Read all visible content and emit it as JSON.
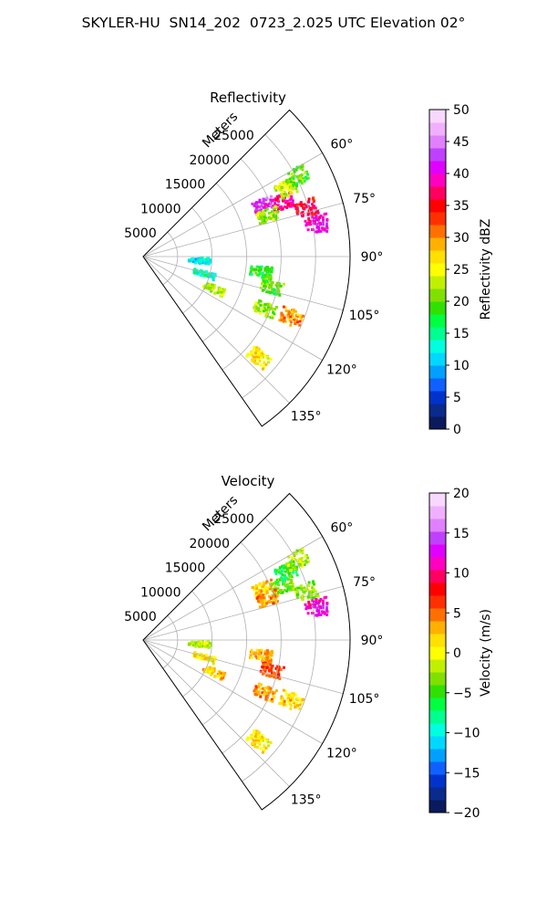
{
  "title": "SKYLER-HU  SN14_202  0723_2.025 UTC Elevation 02°",
  "chart_data": [
    {
      "type": "heatmap",
      "subtype": "polar-sector",
      "title": "Reflectivity",
      "radial_label": "Meters",
      "radial_ticks": [
        5000,
        10000,
        15000,
        20000,
        25000
      ],
      "rlim": [
        0,
        30000
      ],
      "theta_ticks": [
        "60°",
        "75°",
        "90°",
        "105°",
        "120°",
        "135°"
      ],
      "theta_tick_values": [
        60,
        75,
        90,
        105,
        120,
        135
      ],
      "theta_range": [
        45,
        145
      ],
      "grid": true,
      "colorbar": {
        "label": "Reflectivity dBZ",
        "min": 0,
        "max": 50,
        "ticks": [
          "0",
          "5",
          "10",
          "15",
          "20",
          "25",
          "30",
          "35",
          "40",
          "45",
          "50"
        ],
        "colors": [
          "#0a1a5c",
          "#0a2a8c",
          "#0033cc",
          "#1060ff",
          "#00a0ff",
          "#00d8ff",
          "#00ffe0",
          "#00ff90",
          "#00ff40",
          "#30e000",
          "#80e000",
          "#c0f000",
          "#ffff00",
          "#ffe000",
          "#ffb000",
          "#ff7000",
          "#ff3000",
          "#ff0000",
          "#ff0060",
          "#ff00c0",
          "#e000ff",
          "#c040ff",
          "#e080ff",
          "#f0b0ff",
          "#f8d8ff"
        ]
      },
      "echoes": [
        {
          "az": 66,
          "r": 19000,
          "value": 42
        },
        {
          "az": 68,
          "r": 21500,
          "value": 38
        },
        {
          "az": 64,
          "r": 23000,
          "value": 24
        },
        {
          "az": 73,
          "r": 24500,
          "value": 36
        },
        {
          "az": 79,
          "r": 25500,
          "value": 40
        },
        {
          "az": 62,
          "r": 25000,
          "value": 20
        },
        {
          "az": 71,
          "r": 19000,
          "value": 22
        },
        {
          "az": 93,
          "r": 8000,
          "value": 12
        },
        {
          "az": 105,
          "r": 9000,
          "value": 14
        },
        {
          "az": 114,
          "r": 11000,
          "value": 22
        },
        {
          "az": 97,
          "r": 17000,
          "value": 18
        },
        {
          "az": 103,
          "r": 19000,
          "value": 20
        },
        {
          "az": 113,
          "r": 19000,
          "value": 22
        },
        {
          "az": 112,
          "r": 23000,
          "value": 30
        },
        {
          "az": 131,
          "r": 22000,
          "value": 26
        }
      ]
    },
    {
      "type": "heatmap",
      "subtype": "polar-sector",
      "title": "Velocity",
      "radial_label": "Meters",
      "radial_ticks": [
        5000,
        10000,
        15000,
        20000,
        25000
      ],
      "rlim": [
        0,
        30000
      ],
      "theta_ticks": [
        "60°",
        "75°",
        "90°",
        "105°",
        "120°",
        "135°"
      ],
      "theta_tick_values": [
        60,
        75,
        90,
        105,
        120,
        135
      ],
      "theta_range": [
        45,
        145
      ],
      "grid": true,
      "colorbar": {
        "label": "Velocity (m/s)",
        "min": -20,
        "max": 20,
        "ticks": [
          "−20",
          "−15",
          "−10",
          "−5",
          "0",
          "5",
          "10",
          "15",
          "20"
        ],
        "colors": [
          "#0a1a5c",
          "#0a2a8c",
          "#0033cc",
          "#1060ff",
          "#00a0ff",
          "#00d8ff",
          "#00ffe0",
          "#00ff90",
          "#00ff40",
          "#30e000",
          "#80e000",
          "#c0f000",
          "#ffff00",
          "#ffe000",
          "#ffb000",
          "#ff7000",
          "#ff3000",
          "#ff0000",
          "#ff0060",
          "#ff00c0",
          "#e000ff",
          "#c040ff",
          "#e080ff",
          "#f0b0ff",
          "#f8d8ff"
        ]
      },
      "echoes": [
        {
          "az": 66,
          "r": 19000,
          "value": 2
        },
        {
          "az": 68,
          "r": 21500,
          "value": -4
        },
        {
          "az": 64,
          "r": 23000,
          "value": -6
        },
        {
          "az": 73,
          "r": 24500,
          "value": -3
        },
        {
          "az": 79,
          "r": 25500,
          "value": 12
        },
        {
          "az": 62,
          "r": 25000,
          "value": -2
        },
        {
          "az": 71,
          "r": 19000,
          "value": 4
        },
        {
          "az": 93,
          "r": 8000,
          "value": -2
        },
        {
          "az": 105,
          "r": 9000,
          "value": 1
        },
        {
          "az": 114,
          "r": 11000,
          "value": 2
        },
        {
          "az": 97,
          "r": 17000,
          "value": 3
        },
        {
          "az": 103,
          "r": 19000,
          "value": 6
        },
        {
          "az": 113,
          "r": 19000,
          "value": 4
        },
        {
          "az": 112,
          "r": 23000,
          "value": 2
        },
        {
          "az": 131,
          "r": 22000,
          "value": 1
        }
      ]
    }
  ]
}
